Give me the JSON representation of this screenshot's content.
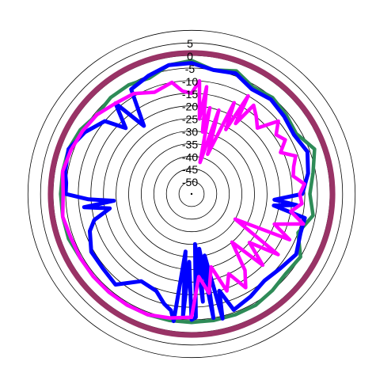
{
  "chart_data": {
    "type": "polar-line",
    "title": "",
    "radial_axis": {
      "ticks": [
        "5",
        "0",
        "-5",
        "-10",
        "-15",
        "-20",
        "-25",
        "-30",
        "-35",
        "-40",
        "-45",
        "-50"
      ],
      "range": [
        -55,
        10
      ],
      "unit": "dB"
    },
    "angle_axis": {
      "direction": "clockwise",
      "zero": "top",
      "unit": "deg"
    },
    "grid": true,
    "legend": "none",
    "series": [
      {
        "color": "#993366",
        "angles": [
          0,
          60,
          120,
          180,
          240,
          300
        ],
        "values": [
          1,
          1,
          1,
          1,
          1,
          1
        ]
      },
      {
        "color": "#2E8B57",
        "angles": [
          0,
          10,
          20,
          30,
          40,
          50,
          60,
          70,
          80,
          90,
          100,
          110,
          120,
          130,
          140,
          150,
          160,
          170,
          180,
          190,
          200,
          210,
          220,
          230,
          240,
          250,
          260,
          270,
          280,
          290,
          300,
          310,
          320,
          330,
          340,
          350
        ],
        "values": [
          -2,
          -5,
          -3,
          -6,
          -5,
          -6,
          -7,
          -3,
          -6,
          -8,
          -6,
          -10,
          -5,
          -6,
          -5,
          -4,
          -4,
          -4,
          -4,
          -4,
          -4,
          -4,
          -4,
          -4,
          -4,
          -3,
          -3,
          -3,
          -3,
          -3,
          -4,
          -6,
          -5,
          -5,
          -6,
          -3
        ]
      },
      {
        "color": "#0000FF",
        "angles": [
          0,
          10,
          20,
          30,
          40,
          50,
          60,
          70,
          80,
          90,
          94,
          96,
          98,
          102,
          110,
          120,
          130,
          140,
          150,
          160,
          164,
          166,
          168,
          170,
          172,
          174,
          176,
          178,
          180,
          182,
          184,
          186,
          188,
          190,
          194,
          200,
          210,
          220,
          230,
          240,
          250,
          255,
          260,
          263,
          265,
          267,
          270,
          275,
          280,
          290,
          300,
          310,
          315,
          320,
          325,
          330,
          340,
          350
        ],
        "values": [
          -3,
          -5,
          -4,
          -7,
          -6,
          -7,
          -8,
          -6,
          -8,
          -11,
          -22,
          -13,
          -22,
          -9,
          -9,
          -7,
          -9,
          -10,
          -8,
          -6,
          -15,
          -4,
          -30,
          -5,
          -33,
          -12,
          -35,
          -6,
          -5,
          -28,
          -6,
          -32,
          -4,
          -8,
          -10,
          -14,
          -15,
          -8,
          -9,
          -9,
          -12,
          -15,
          -22,
          -12,
          -24,
          -14,
          -5,
          -5,
          -4,
          -3,
          -6,
          -10,
          -18,
          -8,
          -22,
          -7,
          -5,
          -3
        ]
      },
      {
        "color": "#FF00FF",
        "angles": [
          0,
          4,
          6,
          8,
          10,
          12,
          15,
          18,
          22,
          25,
          28,
          30,
          32,
          35,
          40,
          45,
          50,
          55,
          60,
          65,
          70,
          75,
          80,
          85,
          90,
          95,
          100,
          105,
          110,
          115,
          120,
          125,
          130,
          135,
          140,
          145,
          150,
          155,
          160,
          165,
          170,
          175,
          180,
          190,
          200,
          210,
          220,
          230,
          240,
          250,
          260,
          270,
          280,
          290,
          300,
          310,
          320,
          330,
          340,
          350,
          355
        ],
        "values": [
          -15,
          -10,
          -25,
          -12,
          -30,
          -20,
          -42,
          -20,
          -38,
          -15,
          -26,
          -10,
          -22,
          -12,
          -15,
          -18,
          -10,
          -14,
          -12,
          -16,
          -11,
          -13,
          -14,
          -10,
          -12,
          -11,
          -15,
          -9,
          -20,
          -12,
          -35,
          -13,
          -25,
          -15,
          -30,
          -18,
          -12,
          -20,
          -14,
          -25,
          -15,
          -22,
          -6,
          -5,
          -4,
          -4,
          -4,
          -4,
          -4,
          -4,
          -3,
          -4,
          -3,
          -4,
          -5,
          -6,
          -8,
          -9,
          -12,
          -10,
          -14
        ]
      }
    ]
  }
}
